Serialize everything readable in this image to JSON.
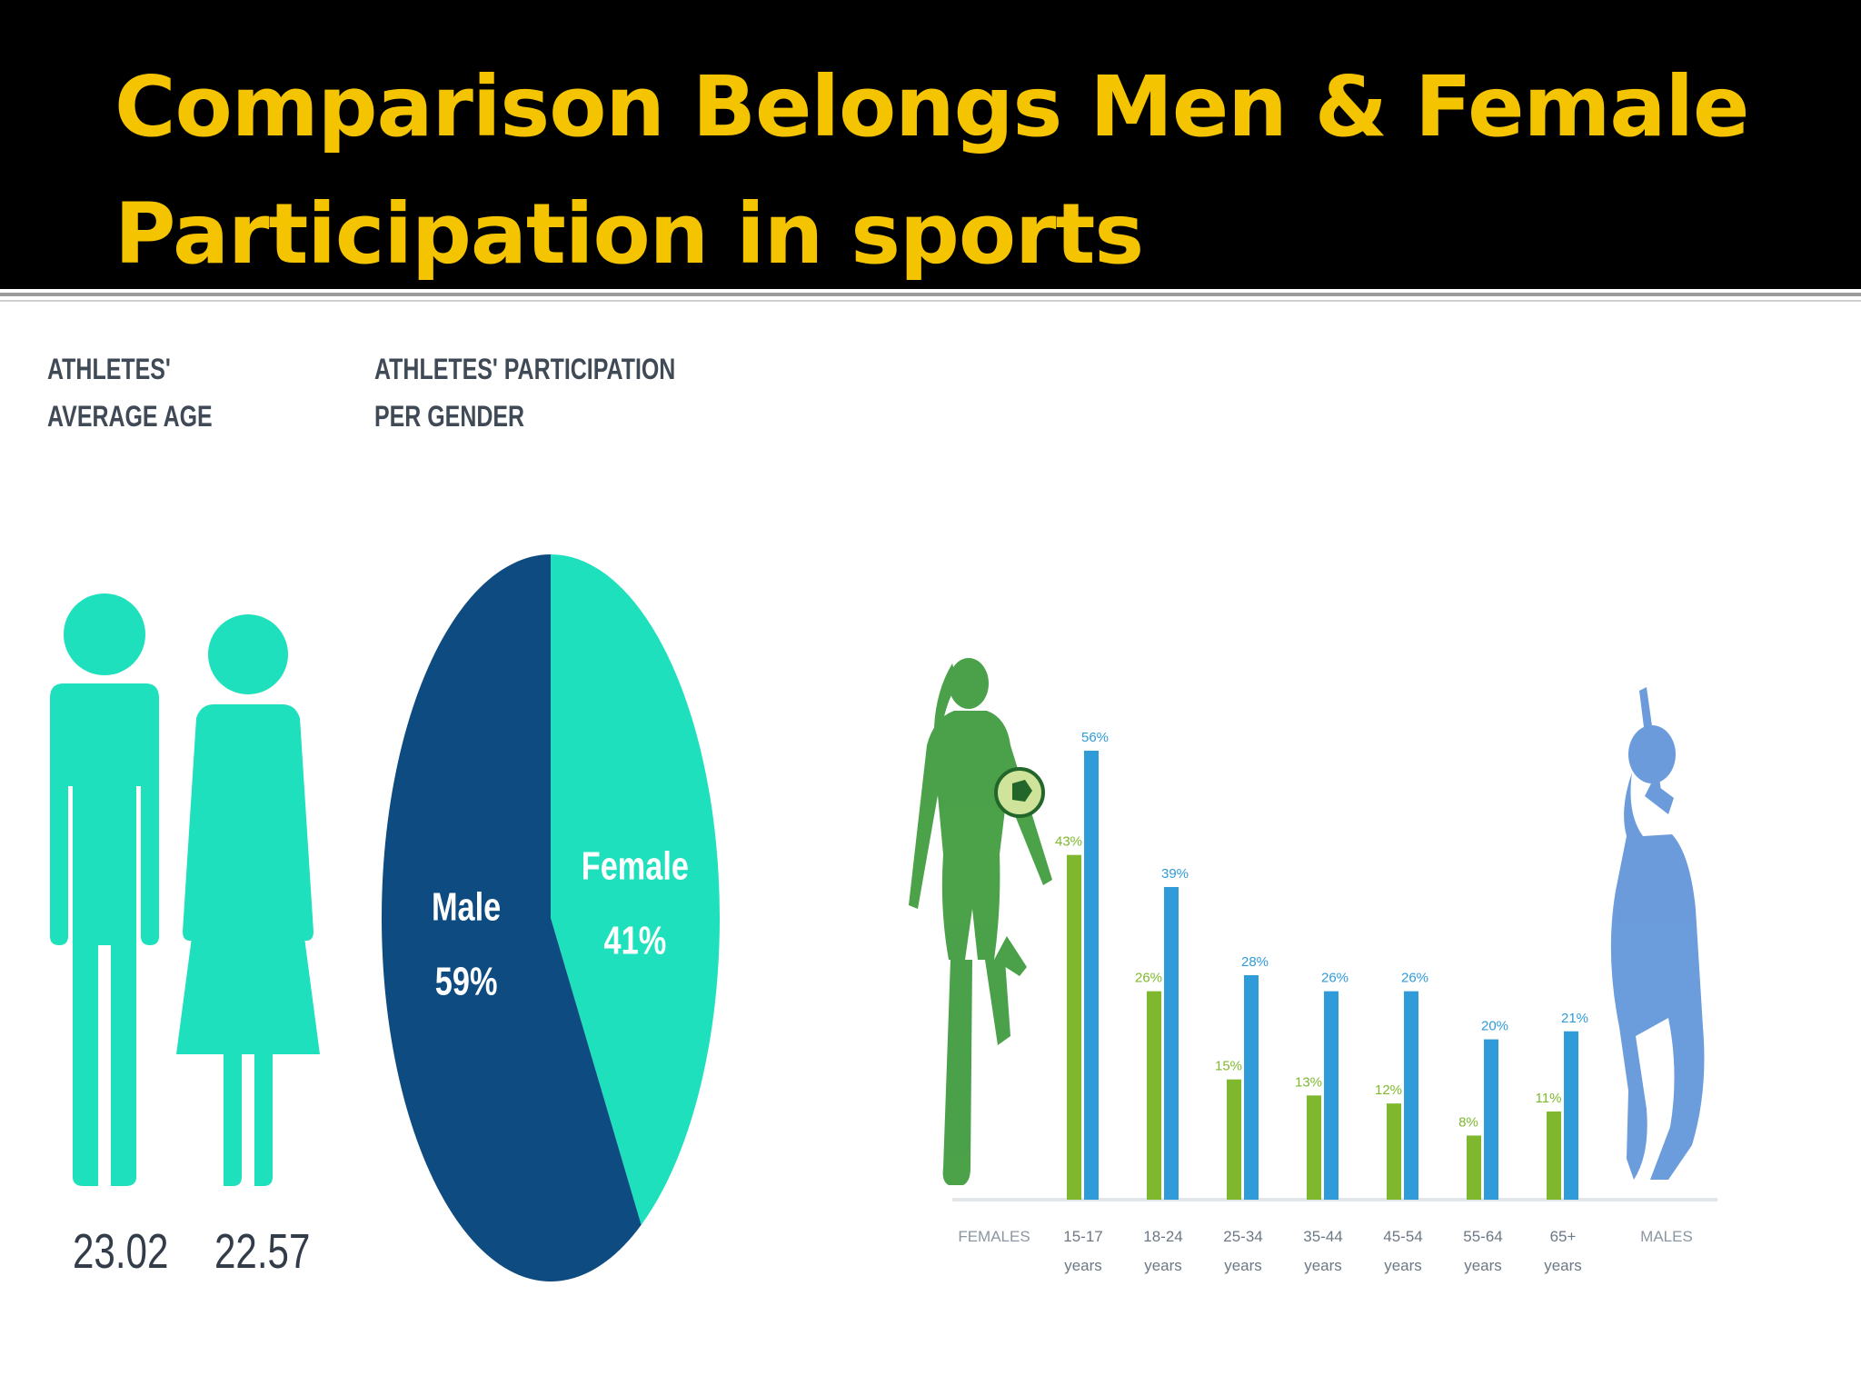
{
  "slide": {
    "title": "Comparison Belongs Men & Female Participation in sports"
  },
  "colors": {
    "header_bg": "#000000",
    "title": "#f5c400",
    "teal": "#1fe0bd",
    "navy": "#0e4b80",
    "female_bar": "#7fb82e",
    "male_bar": "#2f9bd8"
  },
  "age_panel": {
    "title_line1": "ATHLETES'",
    "title_line2": "AVERAGE AGE",
    "male_age": "23.02",
    "female_age": "22.57",
    "male_icon": "male-figure-icon",
    "female_icon": "female-figure-icon"
  },
  "chart_data": [
    {
      "type": "pie",
      "title_line1": "ATHLETES' PARTICIPATION",
      "title_line2": "PER GENDER",
      "slices": [
        {
          "label": "Female",
          "value": 41,
          "display": "41%",
          "color": "#1fe0bd"
        },
        {
          "label": "Male",
          "value": 59,
          "display": "59%",
          "color": "#0e4b80"
        }
      ]
    },
    {
      "type": "bar",
      "categories": [
        [
          "15-17",
          "years"
        ],
        [
          "18-24",
          "years"
        ],
        [
          "25-34",
          "years"
        ],
        [
          "35-44",
          "years"
        ],
        [
          "45-54",
          "years"
        ],
        [
          "55-64",
          "years"
        ],
        [
          "65+",
          "years"
        ]
      ],
      "series": [
        {
          "name": "FEMALES",
          "values": [
            43,
            26,
            15,
            13,
            12,
            8,
            11
          ],
          "labels": [
            "43%",
            "26%",
            "15%",
            "13%",
            "12%",
            "8%",
            "11%"
          ],
          "color": "#7fb82e"
        },
        {
          "name": "MALES",
          "values": [
            56,
            39,
            28,
            26,
            26,
            20,
            21
          ],
          "labels": [
            "56%",
            "39%",
            "28%",
            "26%",
            "26%",
            "20%",
            "21%"
          ],
          "color": "#2f9bd8"
        }
      ],
      "ylim": [
        0,
        60
      ],
      "grid": false,
      "legend": "side labels (FEMALES left, MALES right)",
      "decorations": [
        "female-soccer-player-icon",
        "male-cricket-batsman-icon"
      ]
    }
  ]
}
